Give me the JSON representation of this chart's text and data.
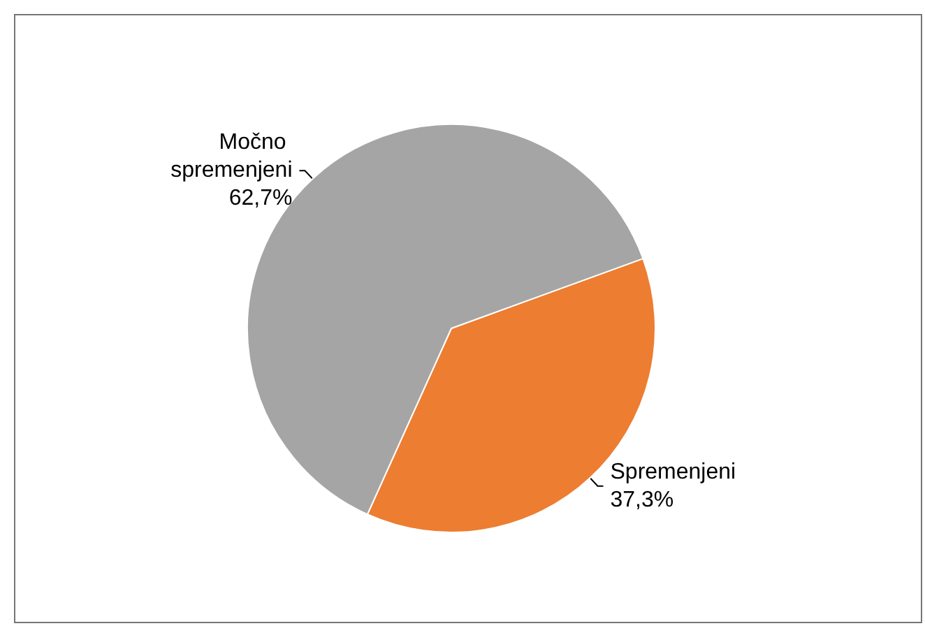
{
  "chart_data": {
    "type": "pie",
    "categories": [
      "Spremenjeni",
      "Močno spremenjeni"
    ],
    "values": [
      37.3,
      62.7
    ],
    "colors": [
      "#ed7d31",
      "#a5a5a5"
    ],
    "value_labels": [
      "37,3%",
      "62,7%"
    ],
    "legend": false
  }
}
